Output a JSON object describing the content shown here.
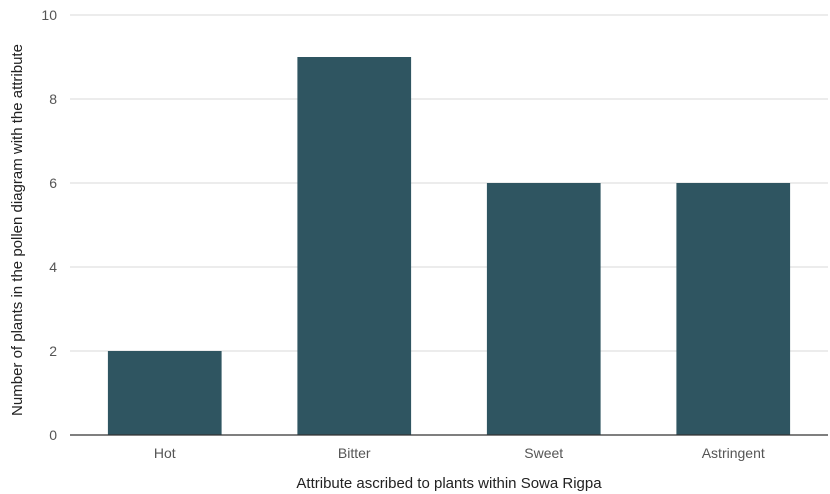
{
  "chart_data": {
    "type": "bar",
    "title": "",
    "xlabel": "Attribute ascribed to plants within Sowa Rigpa",
    "ylabel": "Number of plants in the pollen diagram with the attribute",
    "categories": [
      "Hot",
      "Bitter",
      "Sweet",
      "Astringent"
    ],
    "values": [
      2,
      9,
      6,
      6
    ],
    "ylim": [
      0,
      10
    ],
    "yticks": [
      0,
      2,
      4,
      6,
      8,
      10
    ],
    "grid": true,
    "legend": "none",
    "bar_color": "#2f5561"
  }
}
